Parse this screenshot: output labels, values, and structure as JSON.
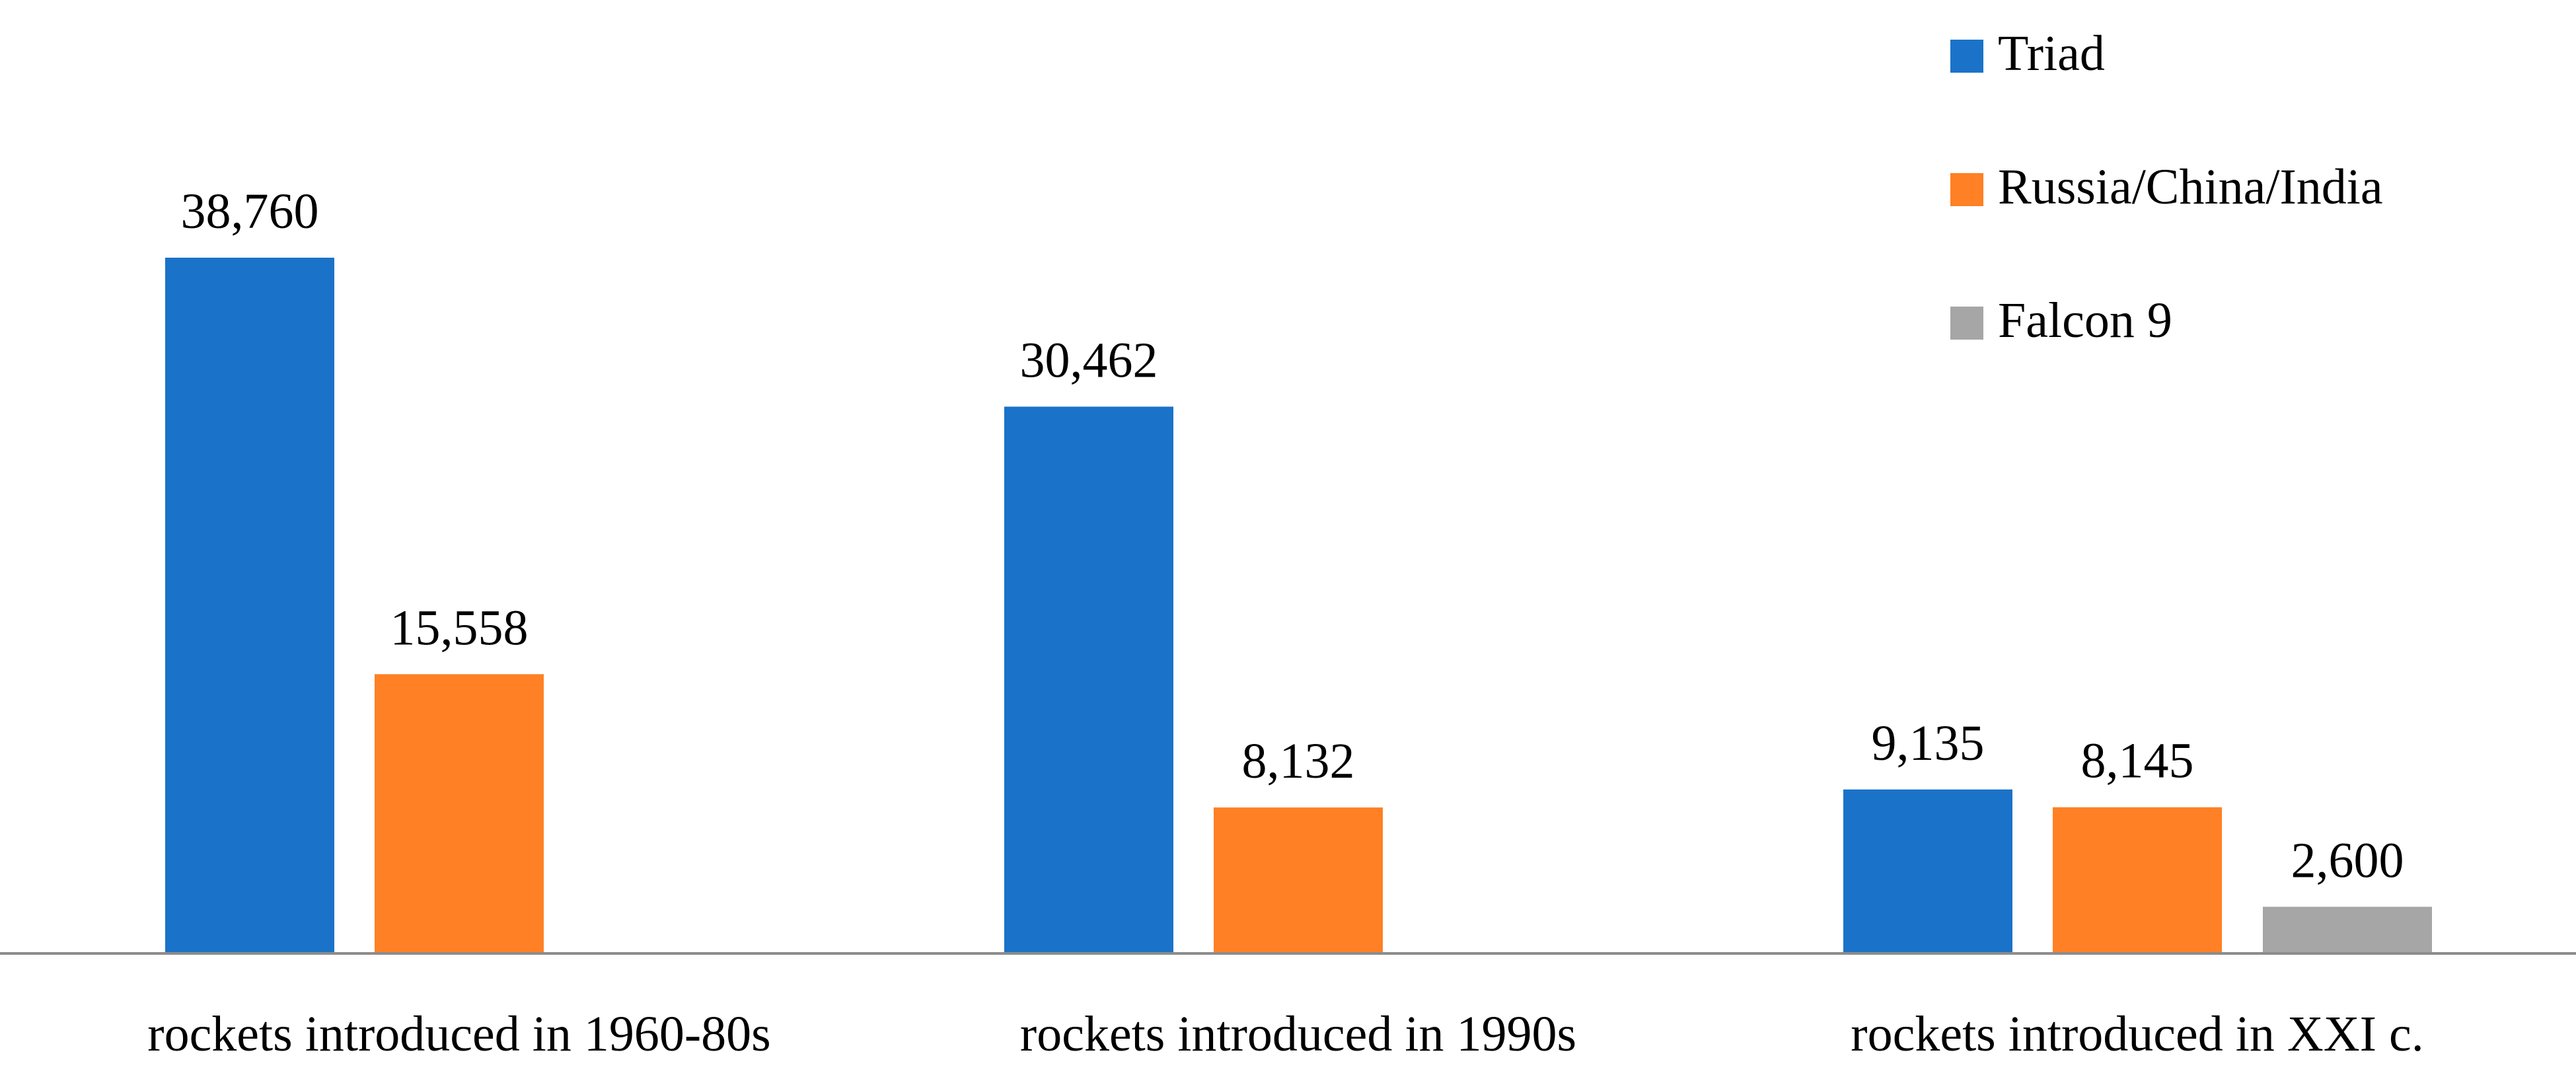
{
  "chart_data": {
    "type": "bar",
    "categories": [
      "rockets introduced in 1960-80s",
      "rockets introduced in 1990s",
      "rockets introduced in XXI c."
    ],
    "series": [
      {
        "name": "Triad",
        "color": "#1a73c9",
        "values": [
          38760,
          30462,
          9135
        ]
      },
      {
        "name": "Russia/China/India",
        "color": "#ff8025",
        "values": [
          15558,
          8132,
          8145
        ]
      },
      {
        "name": "Falcon 9",
        "color": "#a6a6a6",
        "values": [
          null,
          null,
          2600
        ]
      }
    ],
    "data_labels": [
      [
        "38,760",
        "30,462",
        "9,135"
      ],
      [
        "15,558",
        "8,132",
        "8,145"
      ],
      [
        "",
        "",
        "2,600"
      ]
    ],
    "ylim": [
      0,
      38760
    ],
    "grid": false,
    "legend_position": "top-right",
    "axis_color": "#8c8c8c"
  }
}
